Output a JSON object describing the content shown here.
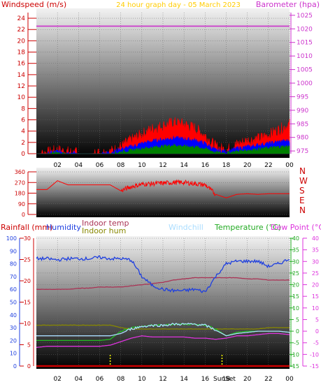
{
  "header": {
    "windspeed_label": "Windspeed (m/s)",
    "graph_date": "24 hour graph day - 05 March 2023",
    "barometer_label": "Barometer (hpa)"
  },
  "colors": {
    "wind_avg": "#0000ff",
    "wind_gust": "#ff0000",
    "wind_low": "#008000",
    "barometer": "#cc33cc",
    "direction": "#ff0000",
    "humidity": "#1e3fe0",
    "indoor_temp": "#aa3355",
    "indoor_hum": "#888800",
    "windchill": "#aaddff",
    "temperature": "#22bb22",
    "dew_point": "#dd33dd",
    "rainfall": "#cc0000",
    "sun_marker": "#ffff00"
  },
  "chart_data": [
    {
      "type": "area",
      "name": "wind",
      "x_ticks": [
        "02",
        "04",
        "06",
        "08",
        "10",
        "12",
        "14",
        "16",
        "18",
        "20",
        "22",
        "00"
      ],
      "left_axis_ticks": [
        "0",
        "2",
        "4",
        "6",
        "8",
        "10",
        "12",
        "14",
        "16",
        "18",
        "20",
        "22",
        "24"
      ],
      "right_axis_ticks": [
        "975",
        "980",
        "985",
        "990",
        "995",
        "1000",
        "1005",
        "1010",
        "1015",
        "1020",
        "1025"
      ],
      "ylim": [
        0,
        25
      ],
      "y2lim": [
        974,
        1026
      ],
      "hours": [
        0,
        1,
        2,
        3,
        4,
        5,
        6,
        7,
        8,
        9,
        10,
        11,
        12,
        13,
        14,
        15,
        16,
        17,
        18,
        19,
        20,
        21,
        22,
        23,
        24
      ],
      "series": [
        {
          "values": [
            0,
            0.1,
            0.6,
            0.3,
            0,
            0,
            0.1,
            0.3,
            1.2,
            2.4,
            3.4,
            4.4,
            4.9,
            5.5,
            5.2,
            4.5,
            3.2,
            1.2,
            0.6,
            1.6,
            2.3,
            2.6,
            3.3,
            4.2,
            5.2
          ]
        },
        {
          "values": [
            0,
            0,
            0.4,
            0.2,
            0,
            0,
            0,
            0.2,
            0.8,
            1.2,
            1.8,
            2.2,
            2.5,
            2.8,
            2.6,
            2.4,
            1.8,
            0.6,
            0.4,
            0.9,
            1.2,
            1.5,
            1.8,
            2.1,
            2.3
          ]
        },
        {
          "values": [
            0,
            0,
            0.1,
            0,
            0,
            0,
            0,
            0,
            0.3,
            0.6,
            0.9,
            1.1,
            1.3,
            1.5,
            1.3,
            1.2,
            0.9,
            0.2,
            0.1,
            0.4,
            0.6,
            0.8,
            1.0,
            1.2,
            1.3
          ]
        },
        {
          "values": [
            1021,
            1021,
            1021,
            1021,
            1021,
            1021,
            1021,
            1021,
            1021,
            1021,
            1021,
            1021,
            1021,
            1021,
            1021,
            1021,
            1021,
            1021,
            1021,
            1021,
            1021,
            1021,
            1021,
            1021,
            1021
          ]
        }
      ]
    },
    {
      "type": "line",
      "name": "wind-direction",
      "left_axis_ticks": [
        "0",
        "90",
        "180",
        "270",
        "360"
      ],
      "right_axis_ticks": [
        "N",
        "E",
        "S",
        "W",
        "N"
      ],
      "ylim": [
        0,
        360
      ],
      "hours": [
        0,
        1,
        2,
        3,
        4,
        5,
        6,
        7,
        8,
        9,
        10,
        11,
        12,
        13,
        14,
        15,
        16,
        17,
        18,
        19,
        20,
        21,
        22,
        23,
        24
      ],
      "values": [
        210,
        210,
        285,
        250,
        250,
        250,
        250,
        250,
        200,
        235,
        255,
        260,
        265,
        270,
        270,
        260,
        250,
        170,
        140,
        170,
        175,
        170,
        175,
        175,
        175
      ]
    },
    {
      "type": "line",
      "name": "temperature-humidity",
      "labels": {
        "rainfall": "Rainfall (mm)",
        "humidity": "Humidity",
        "indoor_temp": "Indoor temp",
        "indoor_hum": "Indoor hum",
        "windchill": "Windchill",
        "temperature": "Temperature (°C)",
        "dew_point": "Dew Point (°C)"
      },
      "axis_humidity_ticks": [
        "0",
        "10",
        "20",
        "30",
        "40",
        "50",
        "60",
        "70",
        "80",
        "90",
        "100"
      ],
      "axis_rain_ticks": [
        "0",
        "5",
        "10",
        "15",
        "20",
        "25",
        "30"
      ],
      "axis_temp_ticks": [
        "-15",
        "-10",
        "-5",
        "0",
        "5",
        "10",
        "15",
        "20",
        "25",
        "30",
        "35",
        "40"
      ],
      "sun_label": "SunSet",
      "sun_marker_hours": [
        7.0,
        17.6
      ],
      "hours": [
        0,
        1,
        2,
        3,
        4,
        5,
        6,
        7,
        8,
        9,
        10,
        11,
        12,
        13,
        14,
        15,
        16,
        17,
        18,
        19,
        20,
        21,
        22,
        23,
        24
      ],
      "series_humidity": [
        84,
        84,
        83,
        84,
        84,
        84,
        85,
        84,
        84,
        83,
        70,
        63,
        60,
        59,
        59,
        60,
        58,
        70,
        80,
        82,
        82,
        82,
        78,
        80,
        84
      ],
      "series_indoor_temp": [
        18,
        18,
        18,
        18,
        18.5,
        18.5,
        19,
        19,
        19,
        19.5,
        20,
        20.5,
        21,
        22,
        22.5,
        23,
        23,
        23,
        23,
        23,
        22.5,
        22.5,
        22,
        22,
        22
      ],
      "series_indoor_hum": [
        32,
        32,
        32,
        32,
        32,
        32,
        32,
        32,
        30,
        29,
        29,
        29,
        29,
        29,
        29,
        29,
        29,
        29,
        29,
        29,
        29,
        29,
        30,
        30,
        30
      ],
      "series_windchill": [
        -2,
        -2,
        -2,
        -2,
        -2,
        -2,
        -2,
        -2,
        -1,
        1,
        2,
        2.5,
        2.5,
        3,
        3,
        3,
        2.5,
        0.5,
        -2,
        -1,
        -0.5,
        0,
        0,
        0,
        -0.5
      ],
      "series_temperature": [
        -4,
        -4,
        -4,
        -4,
        -4,
        -4,
        -4,
        -3.5,
        0,
        1.5,
        2,
        2.5,
        2.5,
        3,
        3,
        3,
        2.5,
        1,
        -2,
        -0.5,
        0,
        0,
        0,
        0,
        -0.5
      ],
      "series_dew_point": [
        -7,
        -6.5,
        -6.5,
        -6.5,
        -6.5,
        -6.5,
        -6.5,
        -6,
        -4.5,
        -3,
        -2,
        -2.5,
        -2.5,
        -2.5,
        -2.5,
        -3,
        -3,
        -3.5,
        -3,
        -2,
        -2,
        -1.5,
        -1,
        -1,
        -1.5
      ],
      "series_rainfall": [
        0,
        0,
        0,
        0,
        0,
        0,
        0,
        0,
        0,
        0,
        0,
        0,
        0,
        0,
        0,
        0,
        0,
        0,
        0,
        0,
        0,
        0,
        0,
        0,
        0
      ]
    }
  ]
}
